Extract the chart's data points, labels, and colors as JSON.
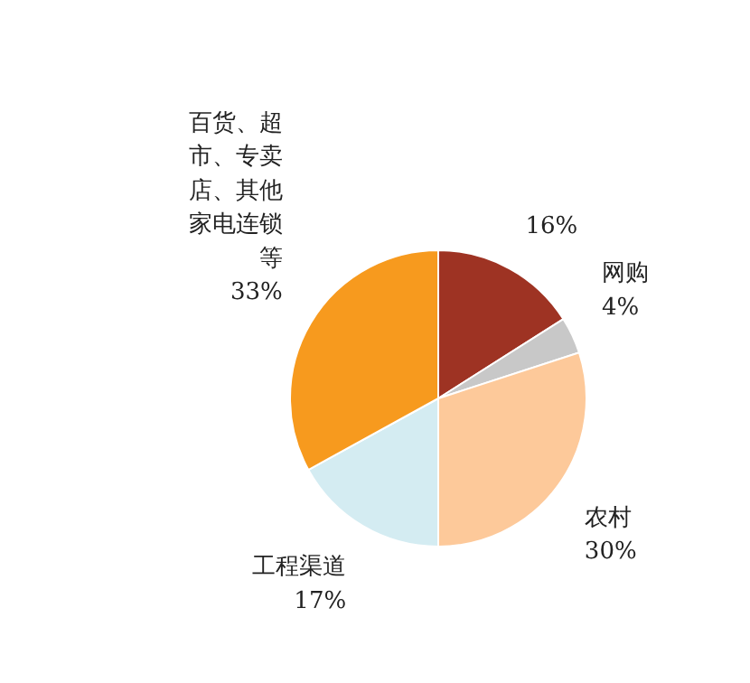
{
  "chart_data": {
    "type": "pie",
    "categories": [
      null,
      "网购",
      "农村",
      "工程渠道",
      "百货、超市、专卖店、其他家电连锁等"
    ],
    "values": [
      16,
      4,
      30,
      17,
      33
    ],
    "colors": [
      "#9e3323",
      "#c8c8c8",
      "#fdc99a",
      "#d4ecf2",
      "#f79a1e"
    ],
    "value_labels": [
      "16%",
      "4%",
      "30%",
      "17%",
      "33%"
    ]
  }
}
